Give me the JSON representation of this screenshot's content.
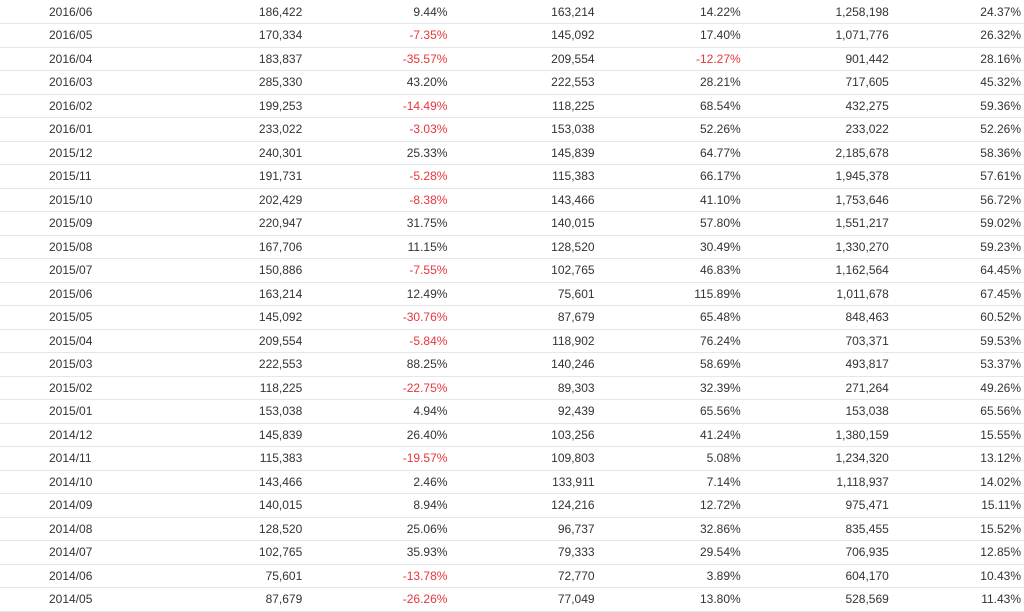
{
  "table": {
    "rows": [
      [
        "2016/06",
        "186,422",
        "9.44%",
        "163,214",
        "14.22%",
        "1,258,198",
        "24.37%"
      ],
      [
        "2016/05",
        "170,334",
        "-7.35%",
        "145,092",
        "17.40%",
        "1,071,776",
        "26.32%"
      ],
      [
        "2016/04",
        "183,837",
        "-35.57%",
        "209,554",
        "-12.27%",
        "901,442",
        "28.16%"
      ],
      [
        "2016/03",
        "285,330",
        "43.20%",
        "222,553",
        "28.21%",
        "717,605",
        "45.32%"
      ],
      [
        "2016/02",
        "199,253",
        "-14.49%",
        "118,225",
        "68.54%",
        "432,275",
        "59.36%"
      ],
      [
        "2016/01",
        "233,022",
        "-3.03%",
        "153,038",
        "52.26%",
        "233,022",
        "52.26%"
      ],
      [
        "2015/12",
        "240,301",
        "25.33%",
        "145,839",
        "64.77%",
        "2,185,678",
        "58.36%"
      ],
      [
        "2015/11",
        "191,731",
        "-5.28%",
        "115,383",
        "66.17%",
        "1,945,378",
        "57.61%"
      ],
      [
        "2015/10",
        "202,429",
        "-8.38%",
        "143,466",
        "41.10%",
        "1,753,646",
        "56.72%"
      ],
      [
        "2015/09",
        "220,947",
        "31.75%",
        "140,015",
        "57.80%",
        "1,551,217",
        "59.02%"
      ],
      [
        "2015/08",
        "167,706",
        "11.15%",
        "128,520",
        "30.49%",
        "1,330,270",
        "59.23%"
      ],
      [
        "2015/07",
        "150,886",
        "-7.55%",
        "102,765",
        "46.83%",
        "1,162,564",
        "64.45%"
      ],
      [
        "2015/06",
        "163,214",
        "12.49%",
        "75,601",
        "115.89%",
        "1,011,678",
        "67.45%"
      ],
      [
        "2015/05",
        "145,092",
        "-30.76%",
        "87,679",
        "65.48%",
        "848,463",
        "60.52%"
      ],
      [
        "2015/04",
        "209,554",
        "-5.84%",
        "118,902",
        "76.24%",
        "703,371",
        "59.53%"
      ],
      [
        "2015/03",
        "222,553",
        "88.25%",
        "140,246",
        "58.69%",
        "493,817",
        "53.37%"
      ],
      [
        "2015/02",
        "118,225",
        "-22.75%",
        "89,303",
        "32.39%",
        "271,264",
        "49.26%"
      ],
      [
        "2015/01",
        "153,038",
        "4.94%",
        "92,439",
        "65.56%",
        "153,038",
        "65.56%"
      ],
      [
        "2014/12",
        "145,839",
        "26.40%",
        "103,256",
        "41.24%",
        "1,380,159",
        "15.55%"
      ],
      [
        "2014/11",
        "115,383",
        "-19.57%",
        "109,803",
        "5.08%",
        "1,234,320",
        "13.12%"
      ],
      [
        "2014/10",
        "143,466",
        "2.46%",
        "133,911",
        "7.14%",
        "1,118,937",
        "14.02%"
      ],
      [
        "2014/09",
        "140,015",
        "8.94%",
        "124,216",
        "12.72%",
        "975,471",
        "15.11%"
      ],
      [
        "2014/08",
        "128,520",
        "25.06%",
        "96,737",
        "32.86%",
        "835,455",
        "15.52%"
      ],
      [
        "2014/07",
        "102,765",
        "35.93%",
        "79,333",
        "29.54%",
        "706,935",
        "12.85%"
      ],
      [
        "2014/06",
        "75,601",
        "-13.78%",
        "72,770",
        "3.89%",
        "604,170",
        "10.43%"
      ],
      [
        "2014/05",
        "87,679",
        "-26.26%",
        "77,049",
        "13.80%",
        "528,569",
        "11.43%"
      ]
    ],
    "negative_color": "#e8363a"
  }
}
